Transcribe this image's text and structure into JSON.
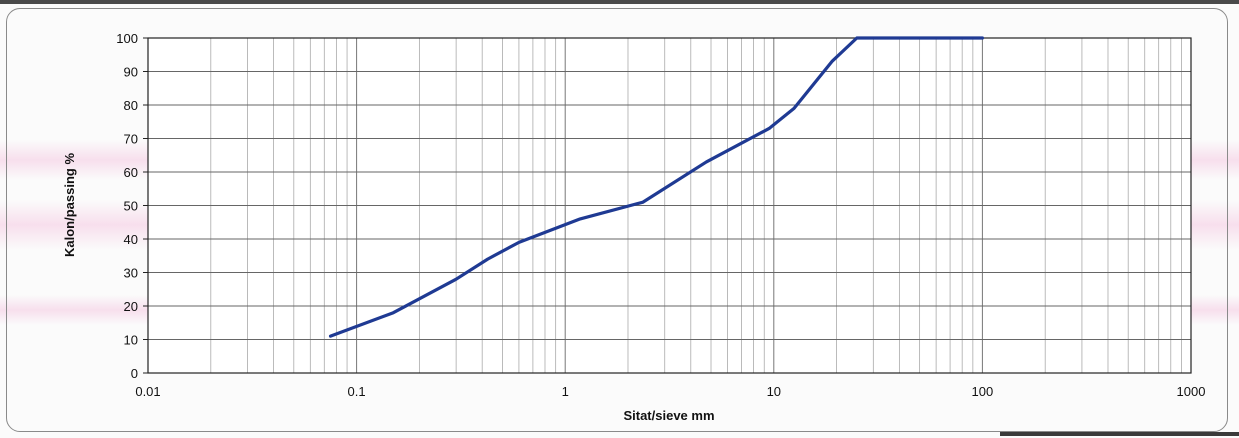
{
  "chart_data": {
    "type": "line",
    "xscale": "log",
    "xlim": [
      0.01,
      1000
    ],
    "ylim": [
      0,
      100
    ],
    "xticks": [
      "0.01",
      "0.1",
      "1",
      "10",
      "100",
      "1000"
    ],
    "yticks": [
      "0",
      "10",
      "20",
      "30",
      "40",
      "50",
      "60",
      "70",
      "80",
      "90",
      "100"
    ],
    "xlabel": "Sitat/sieve mm",
    "ylabel": "Kalon/passing %",
    "grid": true,
    "series": [
      {
        "color": "#1f3a93",
        "x": [
          0.075,
          0.15,
          0.3,
          0.425,
          0.6,
          1.18,
          2.36,
          4.75,
          9.5,
          12.5,
          19,
          25,
          100
        ],
        "y": [
          11,
          18,
          28,
          34,
          39,
          46,
          51,
          63,
          73,
          79,
          93,
          100,
          100
        ]
      }
    ]
  }
}
